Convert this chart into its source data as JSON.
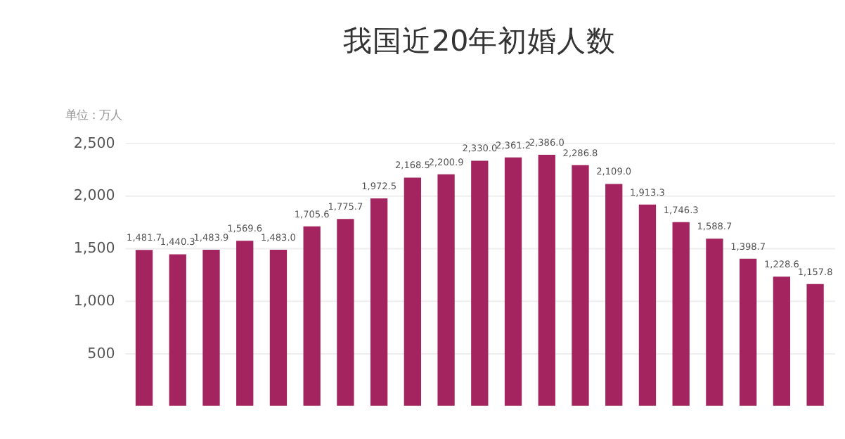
{
  "chart_data": {
    "type": "bar",
    "title": "我国近20年初婚人数",
    "annotations": [
      "单位：万人"
    ],
    "categories": [
      null,
      null,
      null,
      null,
      null,
      null,
      null,
      null,
      null,
      null,
      null,
      null,
      null,
      null,
      null,
      null,
      null,
      null,
      null,
      null,
      null
    ],
    "values": [
      1481.7,
      1440.3,
      1483.9,
      1569.6,
      1483.0,
      1705.6,
      1775.7,
      1972.5,
      2168.5,
      2200.9,
      2330.0,
      2361.2,
      2386.0,
      2286.8,
      2109.0,
      1913.3,
      1746.3,
      1588.7,
      1398.7,
      1228.6,
      1157.8
    ],
    "value_labels": [
      "1,481.7",
      "1,440.3",
      "1,483.9",
      "1,569.6",
      "1,483.0",
      "1,705.6",
      "1,775.7",
      "1,972.5",
      "2,168.5",
      "2,200.9",
      "2,330.0",
      "2,361.2",
      "2,386.0",
      "2,286.8",
      "2,109.0",
      "1,913.3",
      "1,746.3",
      "1,588.7",
      "1,398.7",
      "1,228.6",
      "1,157.8"
    ],
    "color": "#a3245f",
    "ylim": [
      0,
      2500
    ],
    "yticks": [
      {
        "value": 500,
        "label": "500"
      },
      {
        "value": 1000,
        "label": "1,000"
      },
      {
        "value": 1500,
        "label": "1,500"
      },
      {
        "value": 2000,
        "label": "2,000"
      },
      {
        "value": 2500,
        "label": "2,500"
      }
    ],
    "grid": "y",
    "tick_labels": "y"
  }
}
